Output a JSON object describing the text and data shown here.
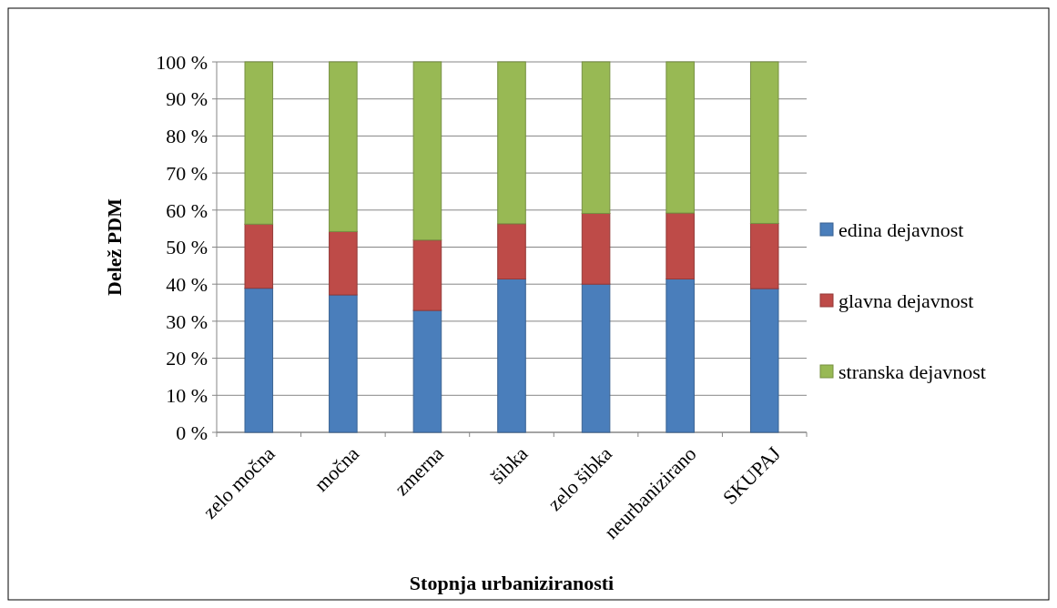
{
  "chart_data": {
    "type": "bar",
    "stacked": true,
    "xlabel": "Stopnja urbaniziranosti",
    "ylabel": "Delež PDM",
    "categories": [
      "zelo močna",
      "močna",
      "zmerna",
      "šibka",
      "zelo šibka",
      "neurbanizirano",
      "SKUPAJ"
    ],
    "series": [
      {
        "name": "edina dejavnost",
        "color": "#4a7ebb",
        "values": [
          38.9,
          37.1,
          32.9,
          41.4,
          40.0,
          41.4,
          38.8
        ]
      },
      {
        "name": "glavna dejavnost",
        "color": "#be4b48",
        "values": [
          17.3,
          17.1,
          19.0,
          14.9,
          19.1,
          17.8,
          17.6
        ]
      },
      {
        "name": "stranska dejavnost",
        "color": "#98b954",
        "values": [
          43.8,
          45.8,
          48.1,
          43.7,
          40.9,
          40.8,
          43.6
        ]
      }
    ],
    "ylim": [
      0,
      100
    ],
    "yticks": [
      {
        "value": 0,
        "label": "0 %"
      },
      {
        "value": 10,
        "label": "10 %"
      },
      {
        "value": 20,
        "label": "20 %"
      },
      {
        "value": 30,
        "label": "30 %"
      },
      {
        "value": 40,
        "label": "40 %"
      },
      {
        "value": 50,
        "label": "50 %"
      },
      {
        "value": 60,
        "label": "60 %"
      },
      {
        "value": 70,
        "label": "70 %"
      },
      {
        "value": 80,
        "label": "80 %"
      },
      {
        "value": 90,
        "label": "90 %"
      },
      {
        "value": 100,
        "label": "100 %"
      }
    ],
    "grid": "y",
    "legend": "right"
  }
}
